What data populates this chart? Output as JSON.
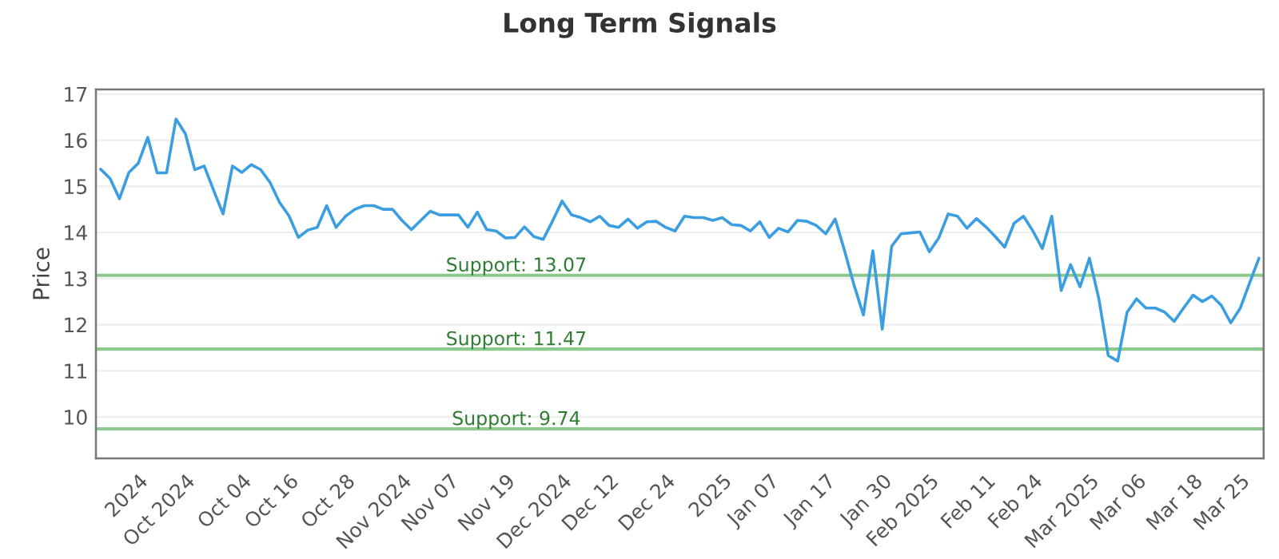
{
  "chart_data": {
    "type": "line",
    "title": "Long Term Signals",
    "ylabel": "Price",
    "categories": [
      null,
      null,
      null,
      null,
      "2024",
      null,
      null,
      null,
      null,
      "Oct 2024",
      null,
      null,
      null,
      null,
      null,
      "Oct 04",
      null,
      null,
      null,
      null,
      "Oct 16",
      null,
      null,
      null,
      null,
      null,
      "Oct 28",
      null,
      null,
      null,
      null,
      null,
      "Nov 2024",
      null,
      null,
      null,
      null,
      "Nov 07",
      null,
      null,
      null,
      null,
      null,
      "Nov 19",
      null,
      null,
      null,
      null,
      null,
      "Dec 2024",
      null,
      null,
      null,
      null,
      "Dec 12",
      null,
      null,
      null,
      null,
      null,
      "Dec 24",
      null,
      null,
      null,
      null,
      null,
      "2025",
      null,
      null,
      null,
      null,
      "Jan 07",
      null,
      null,
      null,
      null,
      null,
      "Jan 17",
      null,
      null,
      null,
      null,
      null,
      "Jan 30",
      null,
      null,
      null,
      null,
      "Feb 2025",
      null,
      null,
      null,
      null,
      null,
      "Feb 11",
      null,
      null,
      null,
      null,
      "Feb 24",
      null,
      null,
      null,
      null,
      null,
      "Mar 2025",
      null,
      null,
      null,
      null,
      "Mar 06",
      null,
      null,
      null,
      null,
      null,
      "Mar 18",
      null,
      null,
      null,
      null,
      "Mar 25",
      null,
      null
    ],
    "series": [
      {
        "color": "#3a9ee0",
        "values": [
          15.37,
          15.17,
          14.73,
          15.3,
          15.5,
          16.06,
          15.29,
          15.29,
          16.46,
          16.14,
          15.36,
          15.44,
          14.91,
          14.4,
          15.44,
          15.3,
          15.47,
          15.36,
          15.08,
          14.65,
          14.36,
          13.89,
          14.05,
          14.11,
          14.58,
          14.11,
          14.35,
          14.5,
          14.58,
          14.58,
          14.5,
          14.5,
          14.26,
          14.06,
          14.26,
          14.46,
          14.38,
          14.38,
          14.38,
          14.11,
          14.44,
          14.06,
          14.03,
          13.88,
          13.89,
          14.12,
          13.91,
          13.85,
          14.25,
          14.68,
          14.38,
          14.32,
          14.23,
          14.35,
          14.15,
          14.11,
          14.29,
          14.09,
          14.23,
          14.24,
          14.11,
          14.03,
          14.35,
          14.32,
          14.32,
          14.26,
          14.32,
          14.17,
          14.15,
          14.03,
          14.23,
          13.89,
          14.09,
          14.01,
          14.26,
          14.24,
          14.15,
          13.97,
          14.29,
          13.6,
          12.86,
          12.21,
          13.6,
          11.9,
          13.7,
          13.97,
          13.99,
          14.01,
          13.58,
          13.88,
          14.4,
          14.35,
          14.09,
          14.3,
          14.12,
          13.91,
          13.68,
          14.2,
          14.35,
          14.03,
          13.65,
          14.35,
          12.74,
          13.3,
          12.82,
          13.44,
          12.56,
          11.33,
          11.21,
          12.27,
          12.56,
          12.36,
          12.36,
          12.27,
          12.07,
          12.36,
          12.64,
          12.5,
          12.62,
          12.42,
          12.04,
          12.35,
          12.9,
          13.44
        ]
      }
    ],
    "ylim": [
      9.1,
      17.1
    ],
    "yticks": [
      10,
      11,
      12,
      13,
      14,
      15,
      16,
      17
    ],
    "ref_lines": [
      {
        "axis": "y",
        "value": 13.07,
        "label": "Support: 13.07",
        "color": "#8cc98c"
      },
      {
        "axis": "y",
        "value": 11.47,
        "label": "Support: 11.47",
        "color": "#8cc98c"
      },
      {
        "axis": "y",
        "value": 9.74,
        "label": "Support: 9.74",
        "color": "#8cc98c"
      }
    ],
    "grid": "y",
    "legend": false,
    "marker": "none",
    "line_style": "solid"
  }
}
